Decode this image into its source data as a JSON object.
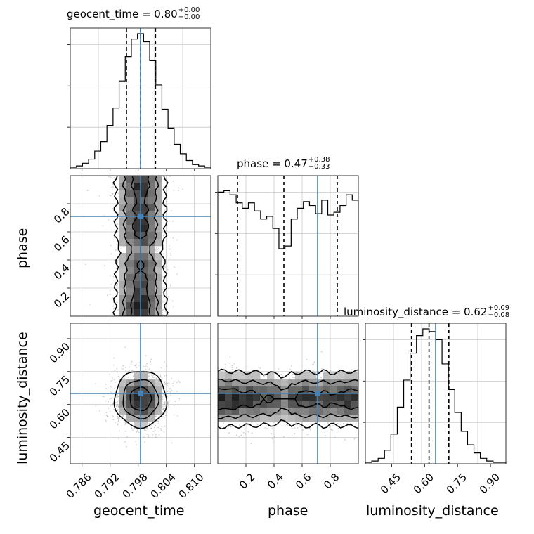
{
  "chart_data": {
    "type": "corner",
    "parameters": [
      "geocent_time",
      "phase",
      "luminosity_distance"
    ],
    "truths": {
      "geocent_time": 0.7985,
      "phase": 0.71,
      "luminosity_distance": 0.65
    },
    "ranges": {
      "geocent_time": [
        0.7835,
        0.8135
      ],
      "phase": [
        0.0,
        1.0
      ],
      "luminosity_distance": [
        0.33,
        0.97
      ]
    },
    "titles": [
      {
        "param": "geocent_time",
        "text": "geocent_time = 0.80",
        "plus": "+0.00",
        "minus": "−0.00"
      },
      {
        "param": "phase",
        "text": "phase = 0.47",
        "plus": "+0.38",
        "minus": "−0.33"
      },
      {
        "param": "luminosity_distance",
        "text": "luminosity_distance = 0.62",
        "plus": "+0.09",
        "minus": "−0.08"
      }
    ],
    "quantiles": {
      "geocent_time": [
        0.7955,
        0.7985,
        0.8017
      ],
      "phase": [
        0.14,
        0.47,
        0.85
      ],
      "luminosity_distance": [
        0.54,
        0.62,
        0.71
      ]
    },
    "ticks": {
      "geocent_time": [
        "0.786",
        "0.792",
        "0.798",
        "0.804",
        "0.810"
      ],
      "phase": [
        "0.2",
        "0.4",
        "0.6",
        "0.8"
      ],
      "luminosity_distance": [
        "0.45",
        "0.60",
        "0.75",
        "0.90"
      ]
    },
    "hist_geocent_time": [
      0.01,
      0.02,
      0.04,
      0.07,
      0.13,
      0.2,
      0.32,
      0.45,
      0.65,
      0.83,
      0.96,
      1.0,
      0.94,
      0.8,
      0.62,
      0.44,
      0.3,
      0.18,
      0.11,
      0.06,
      0.03,
      0.02,
      0.01
    ],
    "hist_phase": [
      0.92,
      0.93,
      0.9,
      0.84,
      0.8,
      0.84,
      0.78,
      0.72,
      0.74,
      0.65,
      0.5,
      0.52,
      0.72,
      0.8,
      0.85,
      0.82,
      0.76,
      0.86,
      0.75,
      0.77,
      0.82,
      0.9,
      0.86
    ],
    "hist_luminosity_distance": [
      0.01,
      0.02,
      0.04,
      0.1,
      0.22,
      0.42,
      0.62,
      0.82,
      0.95,
      1.0,
      0.98,
      0.92,
      0.74,
      0.55,
      0.38,
      0.24,
      0.14,
      0.08,
      0.04,
      0.02,
      0.01,
      0.01
    ],
    "grid": true,
    "color_truth": "#4682b4",
    "color_hist": "#000000"
  }
}
